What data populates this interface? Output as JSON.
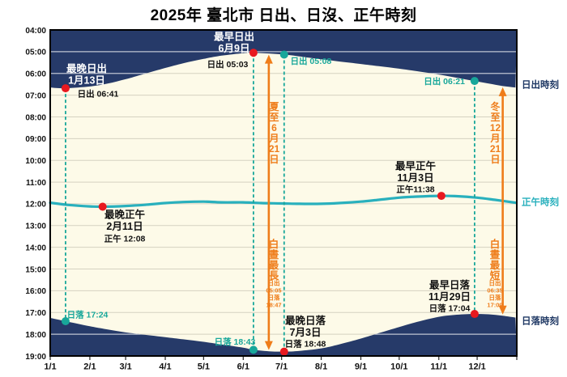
{
  "title": "2025年 臺北市 日出、日沒、正午時刻",
  "colors": {
    "night_fill": "#263a69",
    "day_fill": "#fdfae8",
    "noon_line": "#29b0bd",
    "teal": "#18a79a",
    "red": "#e8191f",
    "orange": "#ef7d1a",
    "navy_text": "#1f3864",
    "black_text": "#111111",
    "grid_on_day": "rgba(110,108,95,0.28)",
    "grid_on_night": "rgba(255,255,255,0.7)"
  },
  "chart_data": {
    "type": "area",
    "title": "2025年 臺北市 日出、日沒、正午時刻",
    "xlabel": "",
    "ylabel": "",
    "x_ticks": [
      "1/1",
      "2/1",
      "3/1",
      "4/1",
      "5/1",
      "6/1",
      "7/1",
      "8/1",
      "9/1",
      "10/1",
      "11/1",
      "12/1"
    ],
    "y_ticks": [
      "04:00",
      "05:00",
      "06:00",
      "07:00",
      "08:00",
      "09:00",
      "10:00",
      "11:00",
      "12:00",
      "13:00",
      "14:00",
      "15:00",
      "16:00",
      "17:00",
      "18:00",
      "19:00"
    ],
    "y_range_hours": [
      4,
      19
    ],
    "grid": true,
    "series_labels": {
      "sunrise": "日出時刻",
      "noon": "正午時刻",
      "sunset": "日落時刻"
    },
    "series": {
      "sunrise": [
        [
          "1/1",
          "06:39"
        ],
        [
          "1/13",
          "06:41"
        ],
        [
          "2/1",
          "06:36"
        ],
        [
          "2/15",
          "06:28"
        ],
        [
          "3/1",
          "06:16"
        ],
        [
          "3/15",
          "06:02"
        ],
        [
          "4/1",
          "05:45"
        ],
        [
          "4/15",
          "05:32"
        ],
        [
          "5/1",
          "05:20"
        ],
        [
          "5/15",
          "05:11"
        ],
        [
          "6/1",
          "05:04"
        ],
        [
          "6/9",
          "05:03"
        ],
        [
          "6/21",
          "05:05"
        ],
        [
          "7/3",
          "05:08"
        ],
        [
          "7/15",
          "05:13"
        ],
        [
          "8/1",
          "05:21"
        ],
        [
          "8/15",
          "05:27"
        ],
        [
          "9/1",
          "05:34"
        ],
        [
          "9/15",
          "05:40"
        ],
        [
          "10/1",
          "05:47"
        ],
        [
          "10/15",
          "05:54"
        ],
        [
          "11/1",
          "06:03"
        ],
        [
          "11/15",
          "06:12"
        ],
        [
          "11/29",
          "06:21"
        ],
        [
          "12/10",
          "06:28"
        ],
        [
          "12/21",
          "06:35"
        ],
        [
          "12/31",
          "06:39"
        ]
      ],
      "sunset": [
        [
          "1/1",
          "17:15"
        ],
        [
          "1/13",
          "17:24"
        ],
        [
          "2/1",
          "17:38"
        ],
        [
          "2/15",
          "17:47"
        ],
        [
          "3/1",
          "17:55"
        ],
        [
          "3/15",
          "18:01"
        ],
        [
          "4/1",
          "18:08"
        ],
        [
          "4/15",
          "18:14"
        ],
        [
          "5/1",
          "18:21"
        ],
        [
          "5/15",
          "18:28"
        ],
        [
          "6/1",
          "18:37"
        ],
        [
          "6/9",
          "18:43"
        ],
        [
          "6/21",
          "18:47"
        ],
        [
          "7/3",
          "18:48"
        ],
        [
          "7/15",
          "18:46"
        ],
        [
          "8/1",
          "18:39"
        ],
        [
          "8/15",
          "18:28"
        ],
        [
          "9/1",
          "18:12"
        ],
        [
          "9/15",
          "17:57"
        ],
        [
          "10/1",
          "17:40"
        ],
        [
          "10/15",
          "17:26"
        ],
        [
          "11/1",
          "17:12"
        ],
        [
          "11/15",
          "17:06"
        ],
        [
          "11/29",
          "17:04"
        ],
        [
          "12/10",
          "17:05"
        ],
        [
          "12/21",
          "17:09"
        ],
        [
          "12/31",
          "17:14"
        ]
      ],
      "noon": [
        [
          "1/1",
          "11:57"
        ],
        [
          "1/15",
          "12:03"
        ],
        [
          "2/1",
          "12:07"
        ],
        [
          "2/11",
          "12:08"
        ],
        [
          "3/1",
          "12:06"
        ],
        [
          "3/15",
          "12:03"
        ],
        [
          "4/1",
          "11:58"
        ],
        [
          "4/15",
          "11:55"
        ],
        [
          "5/1",
          "11:54"
        ],
        [
          "5/15",
          "11:56"
        ],
        [
          "6/1",
          "11:56"
        ],
        [
          "6/15",
          "11:58"
        ],
        [
          "7/1",
          "11:59"
        ],
        [
          "7/15",
          "12:00"
        ],
        [
          "8/1",
          "12:00"
        ],
        [
          "8/15",
          "11:58"
        ],
        [
          "9/1",
          "11:54"
        ],
        [
          "9/15",
          "11:49"
        ],
        [
          "10/1",
          "11:43"
        ],
        [
          "10/15",
          "11:40"
        ],
        [
          "11/3",
          "11:38"
        ],
        [
          "11/15",
          "11:39"
        ],
        [
          "12/1",
          "11:43"
        ],
        [
          "12/15",
          "11:49"
        ],
        [
          "12/31",
          "11:57"
        ]
      ]
    },
    "extremes": [
      {
        "id": "latest_sunrise",
        "name": "最晚日出",
        "date_label": "1月13日",
        "date": "1/13",
        "series": "sunrise",
        "time": "06:41",
        "value_label": "日出 06:41"
      },
      {
        "id": "earliest_sunrise",
        "name": "最早日出",
        "date_label": "6月9日",
        "date": "6/9",
        "series": "sunrise",
        "time": "05:03",
        "value_label": "日出 05:03"
      },
      {
        "id": "latest_noon",
        "name": "最晚正午",
        "date_label": "2月11日",
        "date": "2/11",
        "series": "noon",
        "time": "12:08",
        "value_label": "正午 12:08"
      },
      {
        "id": "earliest_noon",
        "name": "最早正午",
        "date_label": "11月3日",
        "date": "11/3",
        "series": "noon",
        "time": "11:38",
        "value_label": "正午11:38"
      },
      {
        "id": "latest_sunset",
        "name": "最晚日落",
        "date_label": "7月3日",
        "date": "7/3",
        "series": "sunset",
        "time": "18:48",
        "value_label": "日落 18:48"
      },
      {
        "id": "earliest_sunset",
        "name": "最早日落",
        "date_label": "11月29日",
        "date": "11/29",
        "series": "sunset",
        "time": "17:04",
        "value_label": "日落 17:04"
      }
    ],
    "companion_points": [
      {
        "id": "sunset_on_jan13",
        "date": "1/13",
        "series": "sunset",
        "time": "17:24",
        "label": "日落 17:24"
      },
      {
        "id": "sunset_on_jun9",
        "date": "6/9",
        "series": "sunset",
        "time": "18:43",
        "label": "日落 18:43"
      },
      {
        "id": "sunrise_on_jul3",
        "date": "7/3",
        "series": "sunrise",
        "time": "05:08",
        "label": "日出 05:08"
      },
      {
        "id": "sunrise_on_nov29",
        "date": "11/29",
        "series": "sunrise",
        "time": "06:21",
        "label": "日出 06:21"
      }
    ],
    "solstices": [
      {
        "id": "summer",
        "date": "6/21",
        "title": "夏至6月21日",
        "title_cells": [
          "夏",
          "至",
          "6",
          "月",
          "21",
          "日"
        ],
        "caption": "白晝最長",
        "caption_cells": [
          "白",
          "晝",
          "最",
          "長"
        ],
        "details": [
          "日出",
          "05:05",
          "日落",
          "18:47"
        ],
        "sunrise": "05:05",
        "sunset": "18:47"
      },
      {
        "id": "winter",
        "date": "12/21",
        "title": "冬至12月21日",
        "title_cells": [
          "冬",
          "至",
          "12",
          "月",
          "21",
          "日"
        ],
        "caption": "白晝最短",
        "caption_cells": [
          "白",
          "晝",
          "最",
          "短"
        ],
        "details": [
          "日出",
          "06:35",
          "日落",
          "17:09"
        ],
        "sunrise": "06:35",
        "sunset": "17:09"
      }
    ]
  }
}
